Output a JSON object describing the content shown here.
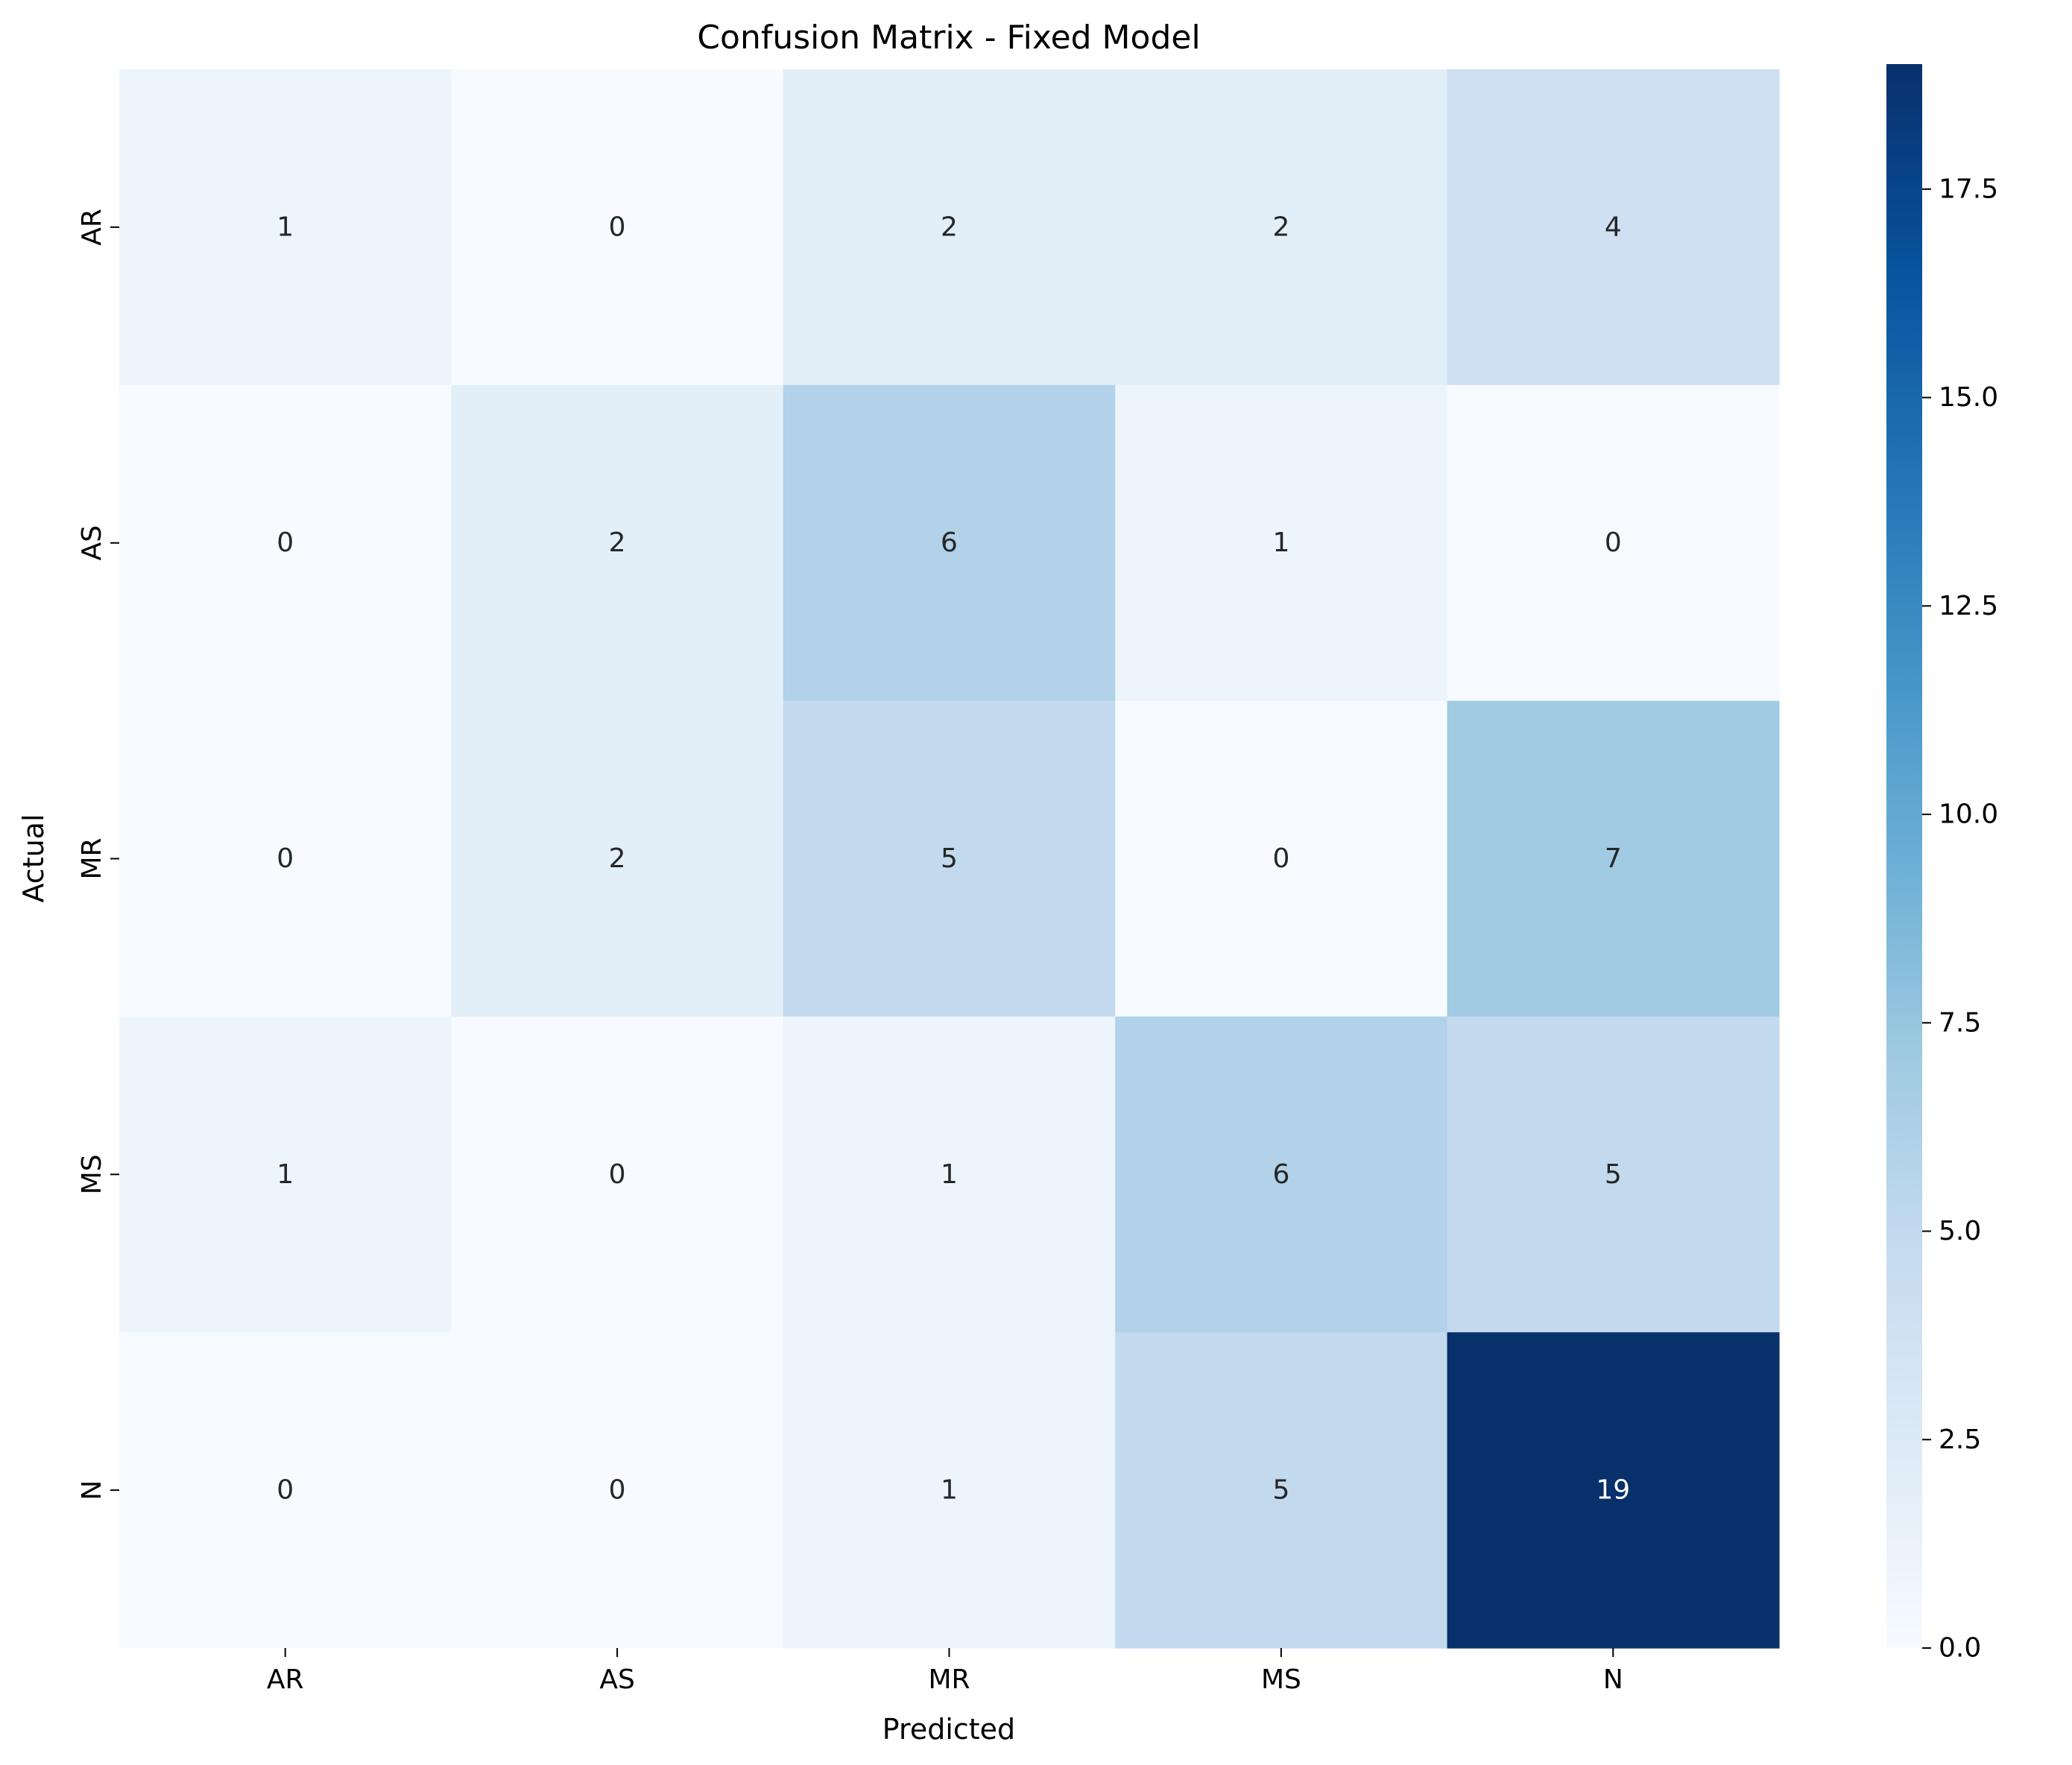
{
  "chart_data": {
    "type": "heatmap",
    "title": "Confusion Matrix - Fixed Model",
    "xlabel": "Predicted",
    "ylabel": "Actual",
    "x_categories": [
      "AR",
      "AS",
      "MR",
      "MS",
      "N"
    ],
    "y_categories": [
      "AR",
      "AS",
      "MR",
      "MS",
      "N"
    ],
    "values": [
      [
        1,
        0,
        2,
        2,
        4
      ],
      [
        0,
        2,
        6,
        1,
        0
      ],
      [
        0,
        2,
        5,
        0,
        7
      ],
      [
        1,
        0,
        1,
        6,
        5
      ],
      [
        0,
        0,
        1,
        5,
        19
      ]
    ],
    "colormap": "Blues",
    "colorbar": {
      "range": [
        0,
        19
      ],
      "ticks": [
        0.0,
        2.5,
        5.0,
        7.5,
        10.0,
        12.5,
        15.0,
        17.5
      ],
      "tick_labels": [
        "0.0",
        "2.5",
        "5.0",
        "7.5",
        "10.0",
        "12.5",
        "15.0",
        "17.5"
      ]
    },
    "annotation_colors": {
      "on_light": "#262626",
      "on_dark": "#ffffff"
    }
  }
}
